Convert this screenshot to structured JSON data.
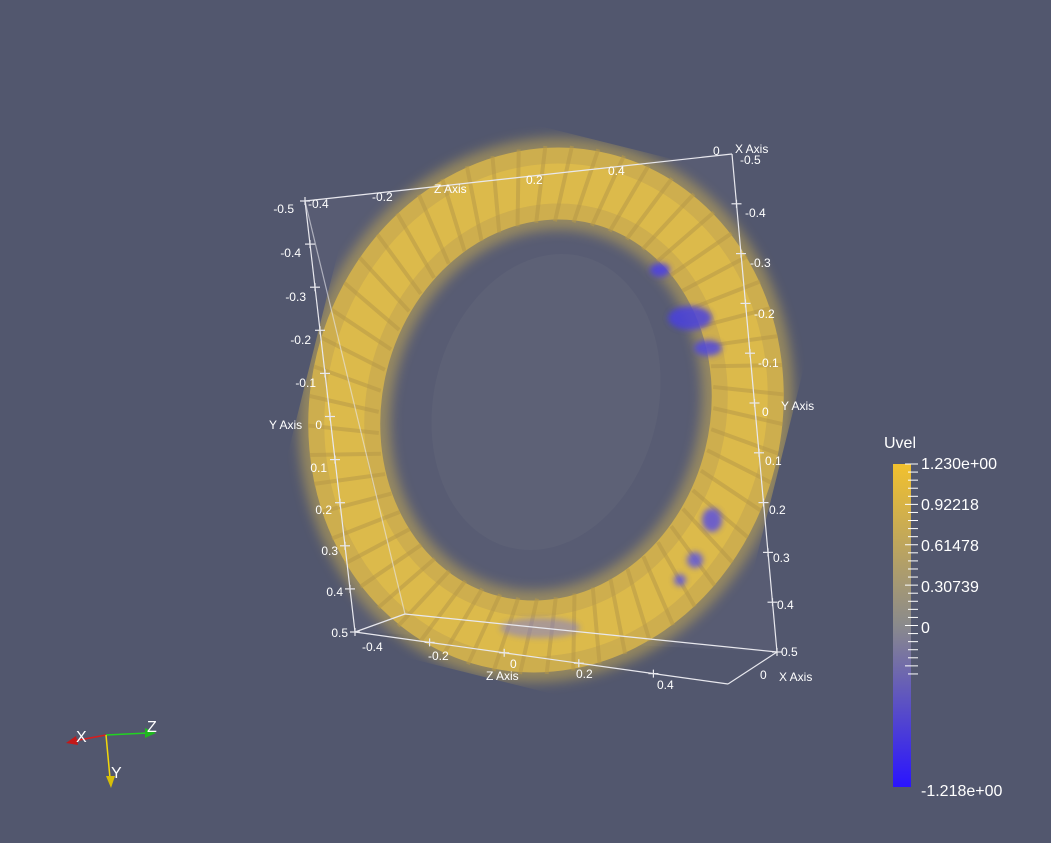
{
  "colors": {
    "background": "#52576e",
    "axis_line": "#e8e8ee",
    "axis_text": "#ffffff",
    "colormap_high": "#f2c12e",
    "colormap_mid": "#8a8a8c",
    "colormap_low": "#2a14ff",
    "triad_x": "#d91c1c",
    "triad_y": "#f2d70a",
    "triad_z": "#22d322"
  },
  "axes": {
    "top_z_title": "Z Axis",
    "top_z_ticks": [
      "-0.4",
      "-0.2",
      "0.2",
      "0.4"
    ],
    "top_corner_zero": "0",
    "top_corner_x_title": "X Axis",
    "top_corner_x_value": "-0.5",
    "left_y_title": "Y Axis",
    "left_y_ticks": [
      "-0.5",
      "-0.4",
      "-0.3",
      "-0.2",
      "-0.1",
      "0",
      "0.1",
      "0.2",
      "0.3",
      "0.4",
      "0.5"
    ],
    "right_y_title": "Y Axis",
    "right_y_ticks": [
      "-0.4",
      "-0.3",
      "-0.2",
      "-0.1",
      "0",
      "0.1",
      "0.2",
      "0.3",
      "0.4",
      "0.5"
    ],
    "bottom_z_title": "Z Axis",
    "bottom_z_ticks": [
      "-0.4",
      "-0.2",
      "0",
      "0.2",
      "0.4"
    ],
    "bottom_corner_zero": "0",
    "bottom_corner_x_title": "X Axis"
  },
  "scalar_bar": {
    "title": "Uvel",
    "max_label": "1.230e+00",
    "min_label": "-1.218e+00",
    "tick_labels": [
      "0.92218",
      "0.61478",
      "0.30739",
      "0"
    ]
  },
  "orientation_axes": {
    "x_label": "X",
    "y_label": "Y",
    "z_label": "Z"
  }
}
